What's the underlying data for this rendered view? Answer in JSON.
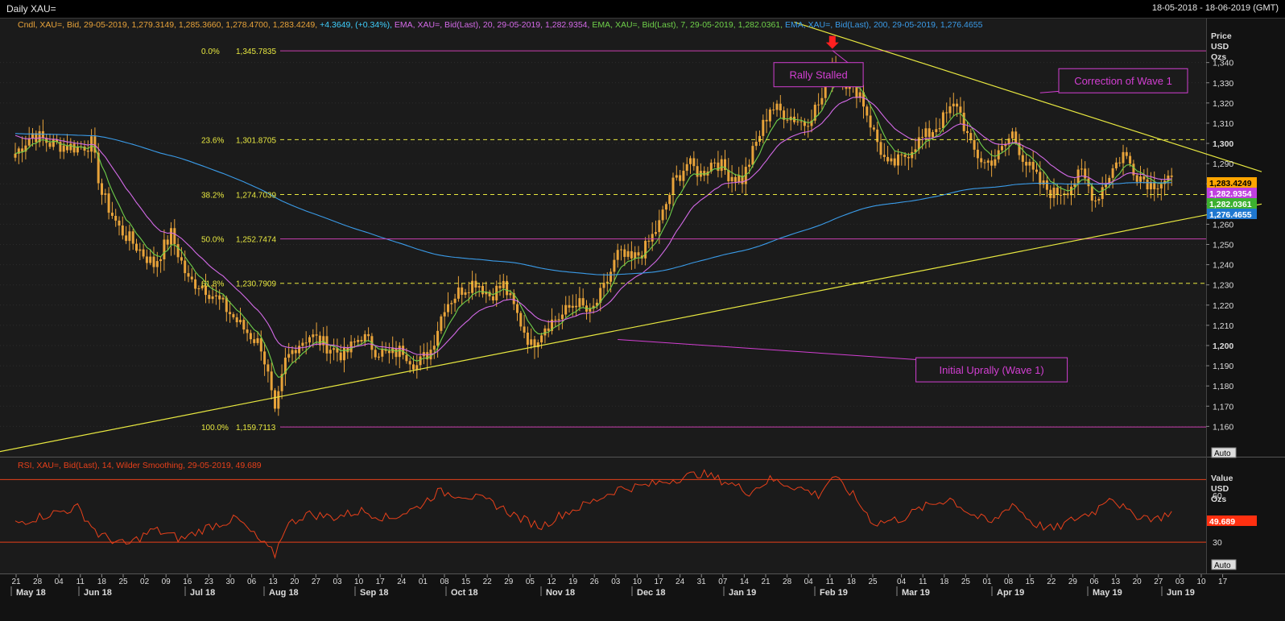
{
  "window": {
    "title": "Daily XAU=",
    "date_range": "18-05-2018 - 18-06-2019 (GMT)"
  },
  "legend": [
    {
      "text": "Cndl, XAU=, Bid, 29-05-2019, 1,279.3149, 1,285.3660, 1,278.4700, 1,283.4249,",
      "color": "#e8a33a"
    },
    {
      "text": " +4.3649, (+0.34%),",
      "color": "#3fd0ff"
    },
    {
      "text": " EMA, XAU=, Bid(Last),  20, 29-05-2019, 1,282.9354,",
      "color": "#d46ae8"
    },
    {
      "text": " EMA, XAU=, Bid(Last),  7, 29-05-2019, 1,282.0361,",
      "color": "#6fd04a"
    },
    {
      "text": " EMA, XAU=, Bid(Last),  200, 29-05-2019, 1,276.4655",
      "color": "#3a9be8"
    }
  ],
  "price_axis": {
    "header": [
      "Price",
      "USD",
      "Ozs"
    ],
    "auto_label": "Auto"
  },
  "rsi_axis": {
    "header": [
      "Value",
      "USD",
      "Ozs"
    ],
    "auto_label": "Auto"
  },
  "rsi_legend": "RSI, XAU=, Bid(Last),  14, Wilder Smoothing, 29-05-2019, 49.689",
  "colors": {
    "candle": "#e8a33a",
    "ema7": "#6fd04a",
    "ema20": "#d46ae8",
    "ema200": "#3a9be8",
    "fib": "#c93fb0",
    "trend": "#e8e840",
    "rsi": "#e8401a",
    "annotation": "#d23fd2"
  },
  "chart_data": [
    {
      "type": "candlestick",
      "title": "Daily XAU=",
      "ylabel": "Price USD Ozs",
      "ylim": [
        1145,
        1357
      ],
      "yticks": [
        "1,160",
        "1,170",
        "1,180",
        "1,190",
        "1,200",
        "1,210",
        "1,220",
        "1,230",
        "1,240",
        "1,250",
        "1,260",
        "1,270",
        "1,280",
        "1,290",
        "1,300",
        "1,310",
        "1,320",
        "1,330",
        "1,340"
      ],
      "bold_yticks": [
        "1,200",
        "1,300"
      ],
      "x_days": [
        "21",
        "28",
        "04",
        "11",
        "18",
        "25",
        "02",
        "09",
        "16",
        "23",
        "30",
        "06",
        "13",
        "20",
        "27",
        "03",
        "10",
        "17",
        "24",
        "01",
        "08",
        "15",
        "22",
        "29",
        "05",
        "12",
        "19",
        "26",
        "03",
        "10",
        "17",
        "24",
        "31",
        "07",
        "14",
        "21",
        "28",
        "04",
        "11",
        "18",
        "25",
        "04",
        "11",
        "18",
        "25",
        "01",
        "08",
        "15",
        "22",
        "29",
        "06",
        "13",
        "20",
        "27",
        "03",
        "10",
        "17"
      ],
      "x_months": [
        "May 18",
        "Jun 18",
        "Jul 18",
        "Aug 18",
        "Sep 18",
        "Oct 18",
        "Nov 18",
        "Dec 18",
        "Jan 19",
        "Feb 19",
        "Mar 19",
        "Apr 19",
        "May 19",
        "Jun 19"
      ],
      "anchors": [
        [
          0,
          1295
        ],
        [
          5,
          1305
        ],
        [
          10,
          1300
        ],
        [
          18,
          1298
        ],
        [
          22,
          1300
        ],
        [
          25,
          1275
        ],
        [
          30,
          1258
        ],
        [
          40,
          1240
        ],
        [
          45,
          1255
        ],
        [
          50,
          1232
        ],
        [
          54,
          1230
        ],
        [
          60,
          1220
        ],
        [
          65,
          1210
        ],
        [
          71,
          1200
        ],
        [
          73,
          1185
        ],
        [
          75,
          1165
        ],
        [
          78,
          1192
        ],
        [
          81,
          1200
        ],
        [
          85,
          1205
        ],
        [
          90,
          1200
        ],
        [
          95,
          1195
        ],
        [
          100,
          1205
        ],
        [
          104,
          1198
        ],
        [
          108,
          1195
        ],
        [
          112,
          1198
        ],
        [
          116,
          1190
        ],
        [
          120,
          1198
        ],
        [
          124,
          1220
        ],
        [
          129,
          1228
        ],
        [
          133,
          1232
        ],
        [
          137,
          1225
        ],
        [
          141,
          1230
        ],
        [
          145,
          1215
        ],
        [
          149,
          1200
        ],
        [
          153,
          1210
        ],
        [
          158,
          1215
        ],
        [
          162,
          1222
        ],
        [
          166,
          1215
        ],
        [
          170,
          1228
        ],
        [
          174,
          1245
        ],
        [
          178,
          1242
        ],
        [
          182,
          1248
        ],
        [
          186,
          1260
        ],
        [
          190,
          1280
        ],
        [
          194,
          1290
        ],
        [
          198,
          1285
        ],
        [
          202,
          1292
        ],
        [
          206,
          1285
        ],
        [
          210,
          1282
        ],
        [
          214,
          1300
        ],
        [
          218,
          1318
        ],
        [
          222,
          1315
        ],
        [
          228,
          1310
        ],
        [
          233,
          1322
        ],
        [
          236,
          1340
        ],
        [
          240,
          1330
        ],
        [
          244,
          1325
        ],
        [
          248,
          1305
        ],
        [
          252,
          1288
        ],
        [
          256,
          1292
        ],
        [
          260,
          1300
        ],
        [
          264,
          1305
        ],
        [
          268,
          1312
        ],
        [
          272,
          1320
        ],
        [
          276,
          1298
        ],
        [
          280,
          1290
        ],
        [
          284,
          1294
        ],
        [
          288,
          1305
        ],
        [
          292,
          1290
        ],
        [
          296,
          1280
        ],
        [
          300,
          1275
        ],
        [
          304,
          1278
        ],
        [
          308,
          1285
        ],
        [
          312,
          1272
        ],
        [
          316,
          1285
        ],
        [
          320,
          1295
        ],
        [
          324,
          1285
        ],
        [
          328,
          1280
        ],
        [
          332,
          1282
        ],
        [
          334,
          1283.4249
        ]
      ],
      "series": [
        {
          "name": "EMA 7",
          "last": "1,282.0361",
          "period": 7
        },
        {
          "name": "EMA 20",
          "last": "1,282.9354",
          "period": 20
        },
        {
          "name": "EMA 200",
          "last": "1,276.4655",
          "period": 200
        }
      ],
      "last_close": "1,283.4249",
      "fibonacci": [
        {
          "pct": "0.0%",
          "level": "1,345.7835",
          "value": 1345.7835,
          "style": "solid"
        },
        {
          "pct": "23.6%",
          "level": "1,301.8705",
          "value": 1301.8705,
          "style": "dashed"
        },
        {
          "pct": "38.2%",
          "level": "1,274.7039",
          "value": 1274.7039,
          "style": "dashed"
        },
        {
          "pct": "50.0%",
          "level": "1,252.7474",
          "value": 1252.7474,
          "style": "solid"
        },
        {
          "pct": "61.8%",
          "level": "1,230.7909",
          "value": 1230.7909,
          "style": "dashed"
        },
        {
          "pct": "100.0%",
          "level": "1,159.7113",
          "value": 1159.7113,
          "style": "solid"
        }
      ],
      "trendlines": [
        {
          "from": [
            -12,
            1145
          ],
          "to": [
            360,
            1270
          ]
        },
        {
          "from": [
            225,
            1360
          ],
          "to": [
            360,
            1286
          ]
        }
      ],
      "annotations": [
        {
          "text": "Rally Stalled",
          "box_value": [
            232,
            1334
          ],
          "target": [
            236,
            1346
          ]
        },
        {
          "text": "Correction of Wave 1",
          "box_value": [
            320,
            1331
          ],
          "target": [
            296,
            1325
          ]
        },
        {
          "text": "Initial Uprally (Wave 1)",
          "box_value": [
            282,
            1188
          ],
          "target": [
            174,
            1203
          ]
        }
      ],
      "peak_marker": [
        236,
        1346
      ]
    },
    {
      "type": "line",
      "title": "RSI",
      "ylabel": "Value USD Ozs",
      "ylim": [
        10,
        82
      ],
      "yticks": [
        "30",
        "60"
      ],
      "bands": [
        30,
        70
      ],
      "last": "49.689",
      "anchors": [
        [
          0,
          42
        ],
        [
          10,
          48
        ],
        [
          18,
          52
        ],
        [
          24,
          35
        ],
        [
          32,
          28
        ],
        [
          40,
          38
        ],
        [
          48,
          32
        ],
        [
          56,
          40
        ],
        [
          64,
          45
        ],
        [
          71,
          30
        ],
        [
          75,
          22
        ],
        [
          78,
          40
        ],
        [
          84,
          48
        ],
        [
          92,
          46
        ],
        [
          100,
          50
        ],
        [
          108,
          45
        ],
        [
          116,
          52
        ],
        [
          122,
          62
        ],
        [
          130,
          60
        ],
        [
          138,
          55
        ],
        [
          146,
          45
        ],
        [
          152,
          40
        ],
        [
          158,
          48
        ],
        [
          166,
          55
        ],
        [
          174,
          64
        ],
        [
          182,
          66
        ],
        [
          190,
          70
        ],
        [
          198,
          74
        ],
        [
          206,
          68
        ],
        [
          212,
          62
        ],
        [
          218,
          70
        ],
        [
          226,
          65
        ],
        [
          232,
          60
        ],
        [
          236,
          72
        ],
        [
          242,
          60
        ],
        [
          248,
          42
        ],
        [
          256,
          45
        ],
        [
          262,
          52
        ],
        [
          270,
          58
        ],
        [
          276,
          48
        ],
        [
          282,
          42
        ],
        [
          288,
          55
        ],
        [
          294,
          42
        ],
        [
          300,
          38
        ],
        [
          306,
          45
        ],
        [
          312,
          50
        ],
        [
          316,
          60
        ],
        [
          322,
          48
        ],
        [
          330,
          45
        ],
        [
          334,
          49.689
        ]
      ]
    }
  ]
}
